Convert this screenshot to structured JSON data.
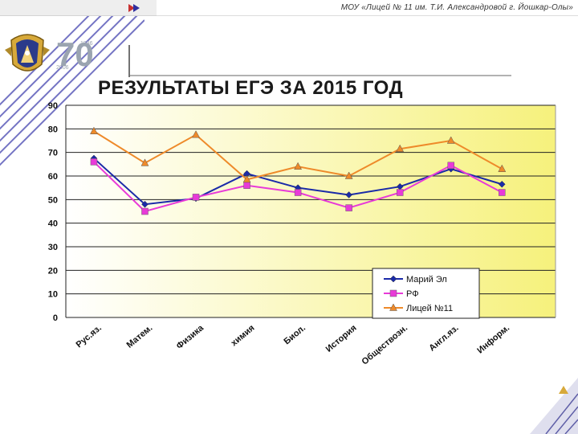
{
  "header": {
    "text": "МОУ «Лицей № 11 им. Т.И. Александровой г. Йошкар-Олы»"
  },
  "logo": {
    "anniversary_number": "70",
    "year_start": "1936",
    "year_end": "2006"
  },
  "page_title": "РЕЗУЛЬТАТЫ ЕГЭ ЗА 2015 ГОД",
  "colors": {
    "accent_stripe": "#3a3aa8",
    "plot_gradient_start": "#ffffff",
    "plot_gradient_end": "#f6f17c"
  },
  "chart_data": {
    "type": "line",
    "title": "",
    "xlabel": "",
    "ylabel": "",
    "ylim": [
      0,
      90
    ],
    "yticks": [
      0,
      10,
      20,
      30,
      40,
      50,
      60,
      70,
      80,
      90
    ],
    "grid": true,
    "legend_position": "bottom-right",
    "categories": [
      "Рус.яз.",
      "Матем.",
      "Физика",
      "химия",
      "Биол.",
      "История",
      "Обществозн.",
      "Англ.яз.",
      "Информ."
    ],
    "series": [
      {
        "name": "Марий Эл",
        "color": "#1a2aa8",
        "marker": "diamond",
        "values": [
          67.5,
          48,
          50.5,
          61,
          55,
          52,
          55.5,
          63,
          56.5
        ]
      },
      {
        "name": "РФ",
        "color": "#e83ad8",
        "marker": "square",
        "values": [
          66,
          45,
          51,
          56,
          53,
          46.5,
          53,
          64.5,
          53
        ]
      },
      {
        "name": "Лицей №11",
        "color": "#ee8a2a",
        "marker": "triangle",
        "values": [
          79,
          65.5,
          77.5,
          58.5,
          64,
          60,
          71.5,
          75,
          63
        ]
      }
    ]
  }
}
